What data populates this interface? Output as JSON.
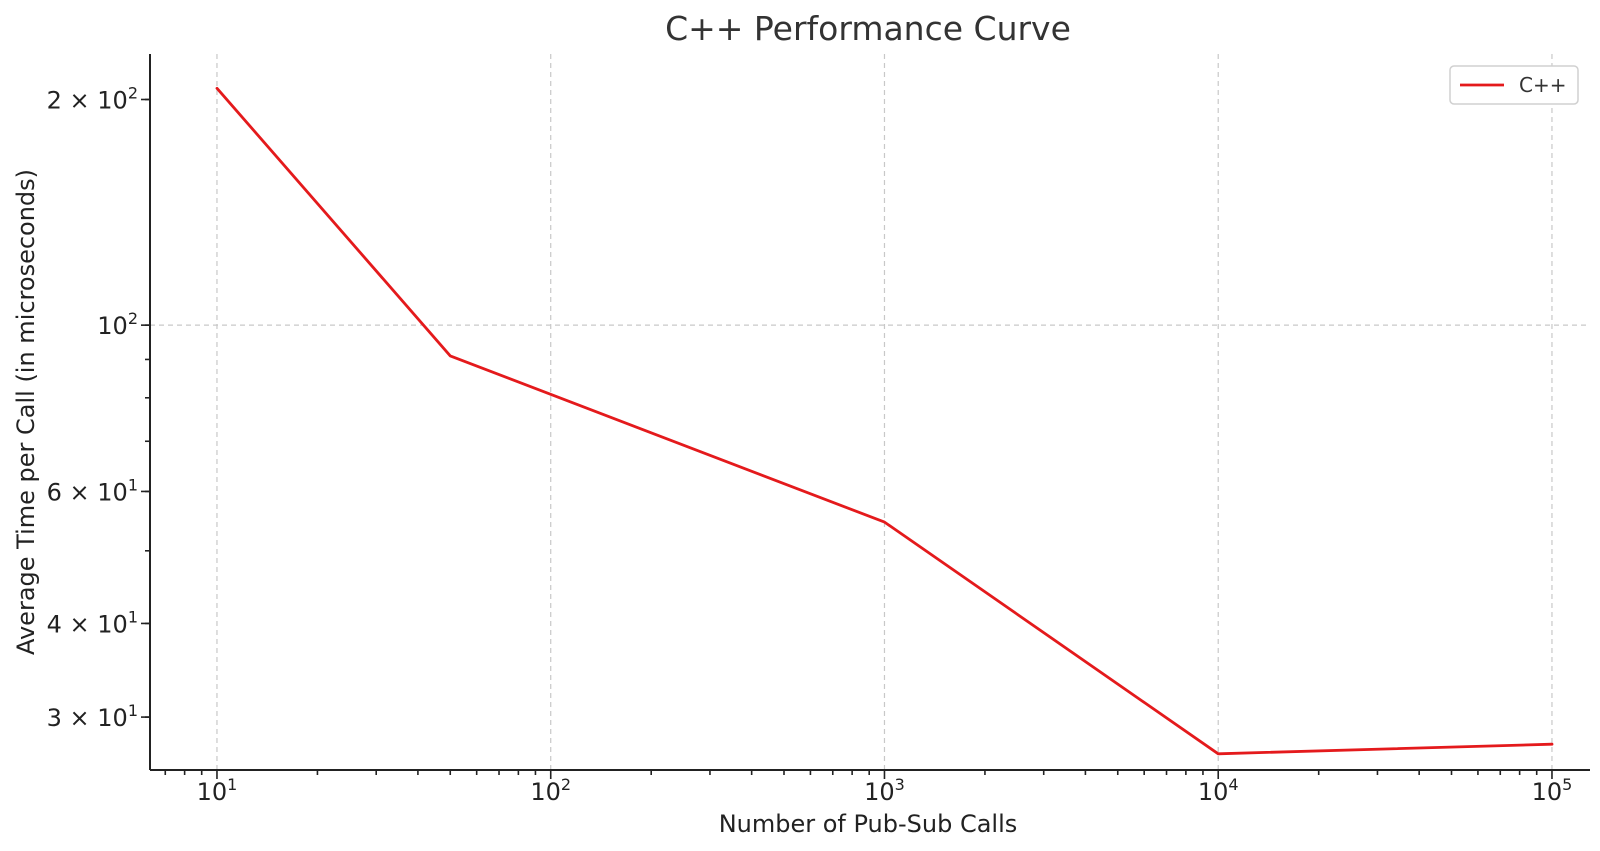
{
  "chart_data": {
    "type": "line",
    "title": "C++ Performance Curve",
    "xlabel": "Number of Pub-Sub Calls",
    "ylabel": "Average Time per Call (in microseconds)",
    "xscale": "log",
    "yscale": "log",
    "xlim": [
      6.3,
      130000
    ],
    "ylim": [
      25.5,
      230
    ],
    "grid": true,
    "legend_position": "top-right",
    "x_ticks": [
      {
        "value": 10,
        "base": "10",
        "exp": "1"
      },
      {
        "value": 100,
        "base": "10",
        "exp": "2"
      },
      {
        "value": 1000,
        "base": "10",
        "exp": "3"
      },
      {
        "value": 10000,
        "base": "10",
        "exp": "4"
      },
      {
        "value": 100000,
        "base": "10",
        "exp": "5"
      }
    ],
    "y_ticks": [
      {
        "value": 200,
        "base": "2 × 10",
        "exp": "2"
      },
      {
        "value": 100,
        "base": "10",
        "exp": "2"
      },
      {
        "value": 60,
        "base": "6 × 10",
        "exp": "1"
      },
      {
        "value": 40,
        "base": "4 × 10",
        "exp": "1"
      },
      {
        "value": 30,
        "base": "3 × 10",
        "exp": "1"
      }
    ],
    "series": [
      {
        "name": "C++",
        "color": "#e41a1c",
        "x": [
          10,
          50,
          1000,
          10000,
          100000
        ],
        "y": [
          207,
          91,
          54.6,
          26.8,
          27.6
        ]
      }
    ]
  }
}
